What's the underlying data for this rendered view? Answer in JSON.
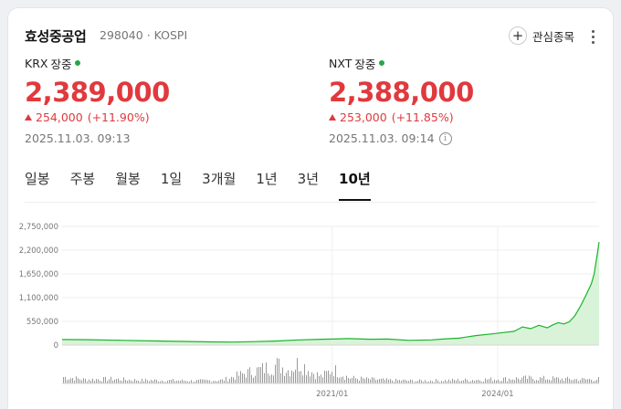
{
  "stock": {
    "name": "효성중공업",
    "code_market": "298040 · KOSPI"
  },
  "watch": {
    "label": "관심종목",
    "icon": "plus-circle-icon"
  },
  "quotes": {
    "krx": {
      "market": "KRX",
      "state": "장중",
      "price": "2,389,000",
      "change": "254,000",
      "change_pct": "(+11.90%)",
      "timestamp": "2025.11.03. 09:13"
    },
    "nxt": {
      "market": "NXT",
      "state": "장중",
      "price": "2,388,000",
      "change": "253,000",
      "change_pct": "(+11.85%)",
      "timestamp": "2025.11.03. 09:14"
    }
  },
  "colors": {
    "up": "#e0393e",
    "live": "#27a644",
    "line": "#1bb32b",
    "fill": "#d8f3d8",
    "volume": "#9a9a9a"
  },
  "tabs": [
    {
      "label": "일봉"
    },
    {
      "label": "주봉"
    },
    {
      "label": "월봉"
    },
    {
      "label": "1일"
    },
    {
      "label": "3개월"
    },
    {
      "label": "1년"
    },
    {
      "label": "3년"
    },
    {
      "label": "10년",
      "active": true
    }
  ],
  "chart_data": {
    "type": "area",
    "y_ticks": [
      "2,750,000",
      "2,200,000",
      "1,650,000",
      "1,100,000",
      "550,000",
      "0"
    ],
    "ylim": [
      0,
      2750000
    ],
    "x_ticks": [
      "2021/01",
      "2024/01"
    ],
    "x_tick_years": [
      2021.0,
      2024.0
    ],
    "xlim": [
      2016.1,
      2025.84
    ],
    "grid": true,
    "series": [
      {
        "x": [
          2016.1,
          2016.6,
          2017.2,
          2017.8,
          2018.3,
          2018.8,
          2019.2,
          2019.6,
          2020.0,
          2020.4,
          2020.8,
          2021.0,
          2021.3,
          2021.7,
          2022.0,
          2022.4,
          2022.8,
          2023.0,
          2023.3,
          2023.6,
          2023.9,
          2024.1,
          2024.3,
          2024.45,
          2024.6,
          2024.75,
          2024.9,
          2025.0,
          2025.1,
          2025.2,
          2025.3,
          2025.4,
          2025.5,
          2025.6,
          2025.7,
          2025.75,
          2025.8,
          2025.84
        ],
        "values": [
          130000,
          125000,
          110000,
          95000,
          85000,
          75000,
          70000,
          80000,
          95000,
          120000,
          135000,
          140000,
          150000,
          135000,
          140000,
          110000,
          120000,
          140000,
          160000,
          220000,
          260000,
          290000,
          320000,
          420000,
          380000,
          460000,
          400000,
          470000,
          520000,
          490000,
          540000,
          680000,
          900000,
          1150000,
          1420000,
          1650000,
          2050000,
          2389000
        ]
      }
    ],
    "volume": {
      "x": [
        2016.1,
        2016.5,
        2017.0,
        2017.5,
        2018.0,
        2018.5,
        2019.0,
        2019.4,
        2019.8,
        2020.0,
        2020.2,
        2020.4,
        2020.6,
        2020.8,
        2021.0,
        2021.3,
        2021.6,
        2022.0,
        2022.5,
        2023.0,
        2023.5,
        2024.0,
        2024.5,
        2025.0,
        2025.5,
        2025.84
      ],
      "values": [
        30,
        18,
        20,
        15,
        14,
        12,
        15,
        45,
        70,
        85,
        60,
        95,
        55,
        30,
        65,
        25,
        20,
        15,
        12,
        14,
        16,
        20,
        24,
        22,
        18,
        20
      ]
    }
  }
}
